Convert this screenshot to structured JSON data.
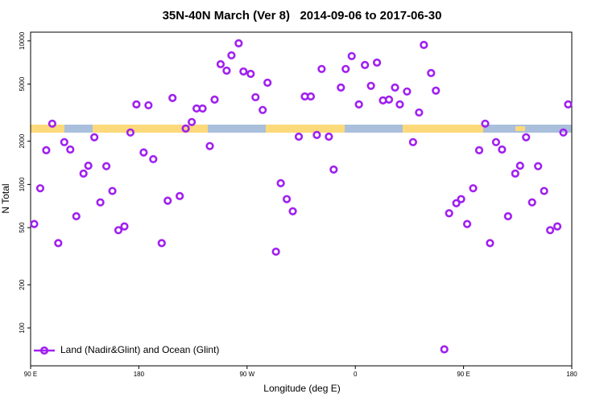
{
  "chart_data": {
    "type": "scatter",
    "title": "35N-40N March (Ver 8)   2014-09-06 to 2017-06-30",
    "x_label": "Longitude (deg E)",
    "y_label": "N Total",
    "xlim": [
      90,
      540
    ],
    "xticks": [
      {
        "value": 90,
        "label": "90 E"
      },
      180,
      {
        "value": 270,
        "label": "90 W"
      },
      {
        "value": 360,
        "label": "0"
      },
      {
        "value": 450,
        "label": "90 E"
      },
      {
        "value": 540,
        "label": "180"
      }
    ],
    "ylim": [
      54.5,
      11500
    ],
    "log_y": true,
    "yticks": [
      100,
      200,
      500,
      1000,
      2000,
      5000,
      10000
    ],
    "legend": "lower left",
    "series": [
      {
        "name": "Land (Nadir&Glint) and Ocean (Glint)",
        "color": "#a020f0",
        "x": [
          93,
          98,
          103,
          108,
          113,
          118,
          123,
          128,
          134,
          138,
          143,
          148,
          153,
          158,
          163,
          168,
          173,
          178,
          184,
          188,
          192,
          199,
          204,
          208,
          214,
          219,
          224,
          228,
          233,
          239,
          243,
          248,
          253,
          257,
          263,
          267,
          273,
          277,
          283,
          287,
          294,
          298,
          303,
          308,
          313,
          318,
          323,
          328,
          332,
          338,
          342,
          348,
          352,
          357,
          363,
          368,
          373,
          378,
          383,
          388,
          393,
          397,
          403,
          408,
          413,
          417,
          423,
          427,
          434,
          438,
          444,
          448,
          453,
          458,
          463,
          468,
          472,
          477,
          482,
          487,
          493,
          497,
          502,
          507,
          512,
          517,
          522,
          528,
          533,
          537
        ],
        "values": [
          530,
          940,
          1730,
          2650,
          390,
          1970,
          1750,
          600,
          1190,
          1350,
          2130,
          750,
          1340,
          900,
          480,
          510,
          2300,
          3610,
          1670,
          3560,
          1500,
          390,
          770,
          4000,
          830,
          2450,
          2720,
          3380,
          3380,
          1850,
          3900,
          6880,
          6200,
          7930,
          9620,
          6120,
          5890,
          4050,
          3300,
          5110,
          340,
          1020,
          790,
          650,
          2150,
          4100,
          4100,
          2210,
          6370,
          2150,
          1270,
          4730,
          6370,
          7830,
          3610,
          6790,
          4860,
          7060,
          3850,
          3900,
          4730,
          3610,
          4440,
          1970,
          3170,
          9370,
          5970,
          4500,
          71,
          630,
          740,
          790,
          530,
          940,
          1730,
          2650,
          390,
          1970,
          1750,
          600,
          1190,
          1350,
          2130,
          750,
          1340,
          900,
          480,
          510,
          2300,
          3610
        ]
      }
    ]
  }
}
